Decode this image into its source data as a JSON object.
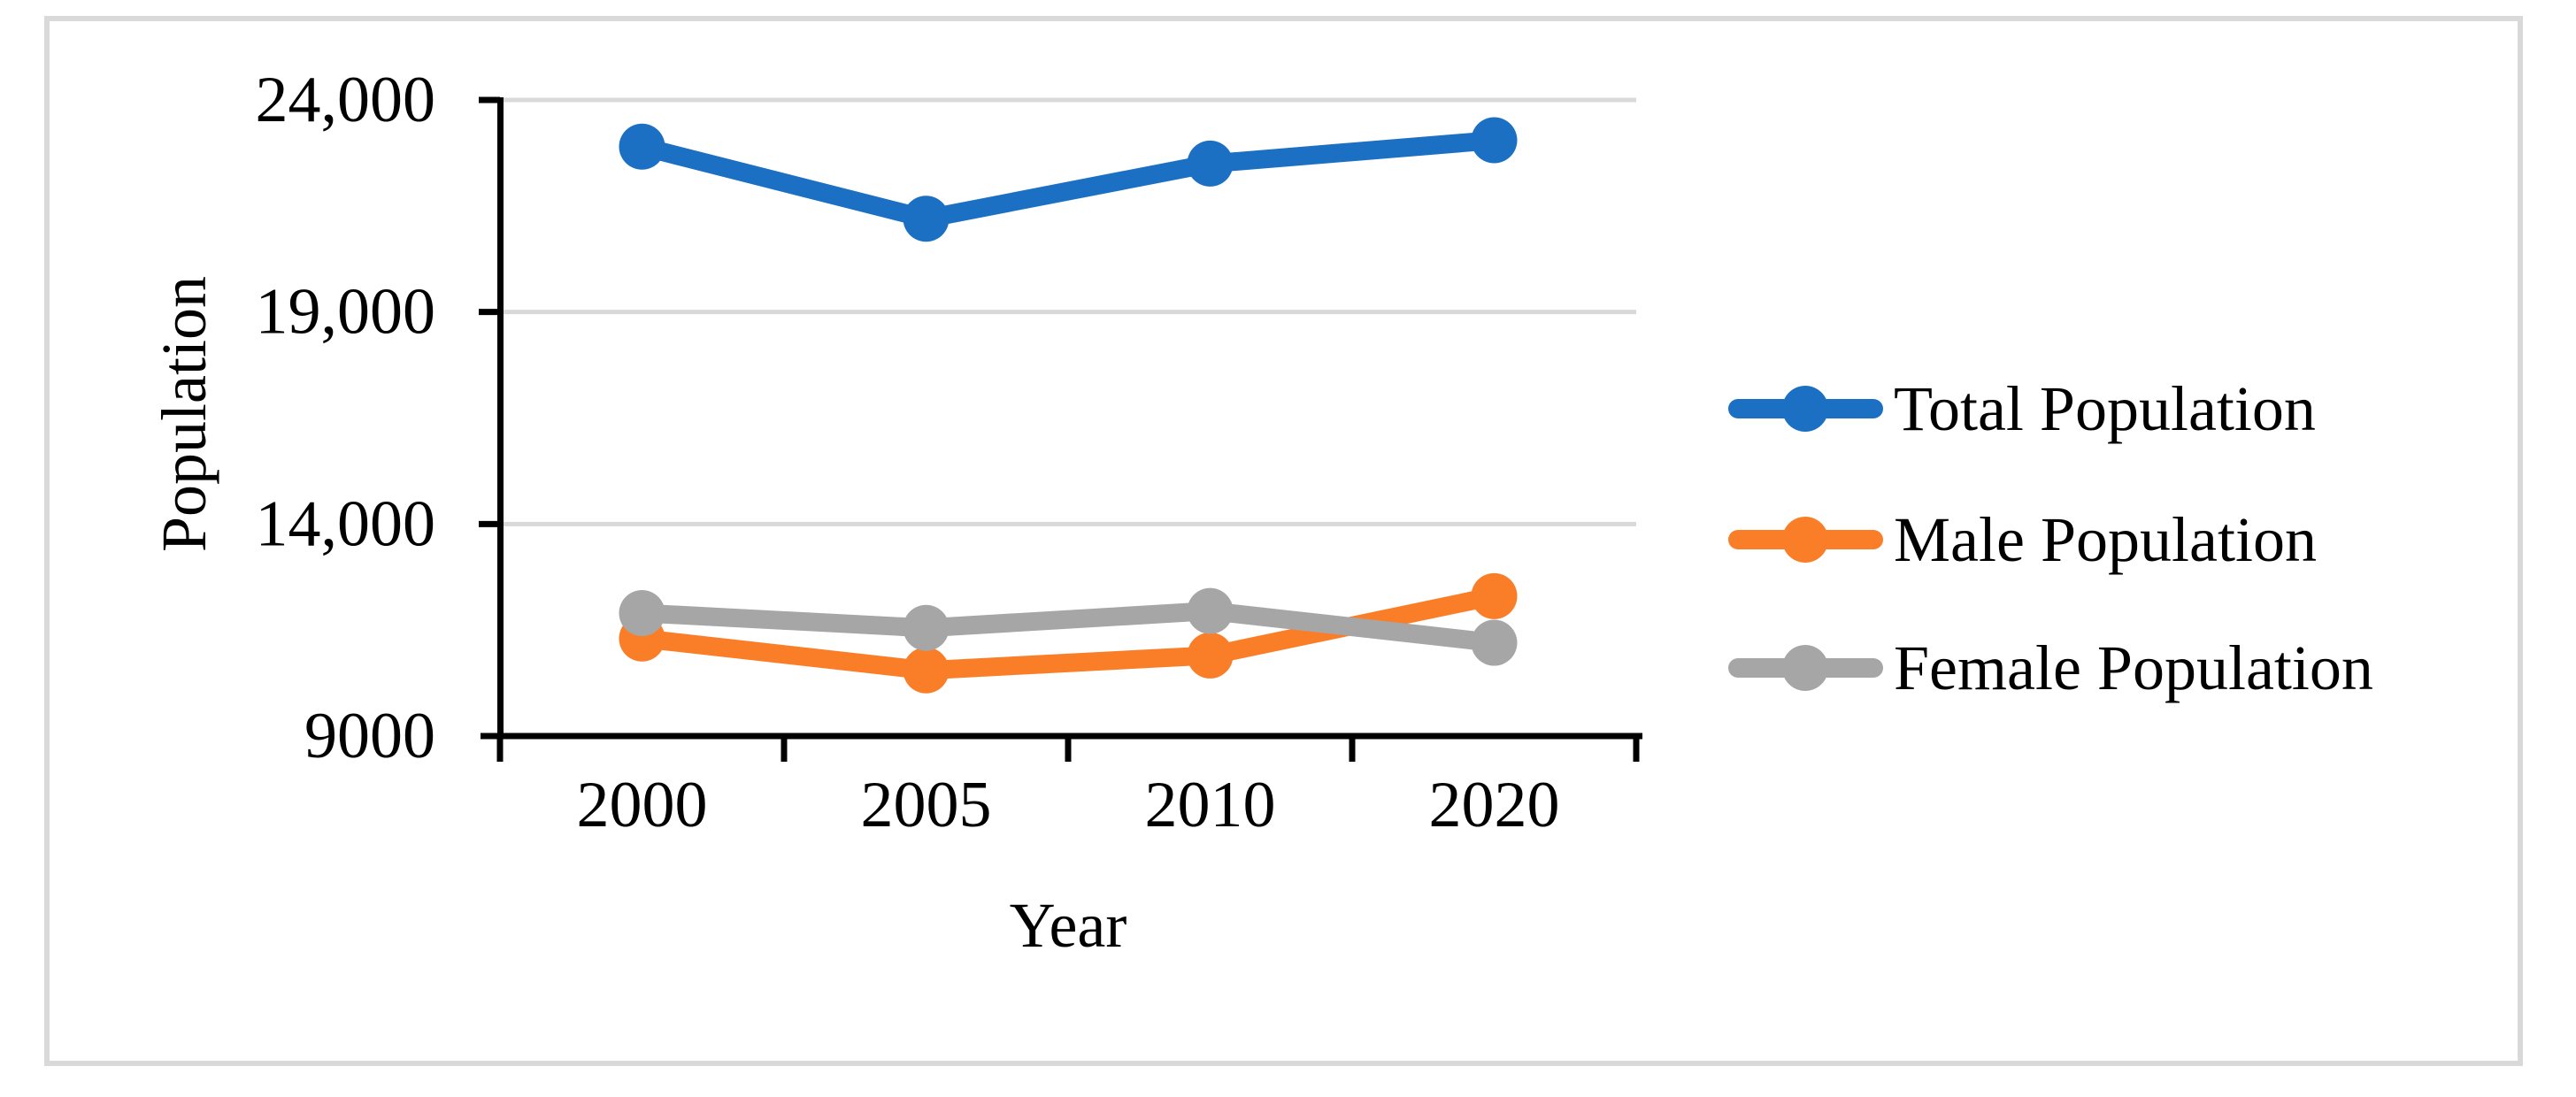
{
  "page": {
    "background": "#FFFFFF"
  },
  "frame": {
    "border_color": "#D9D9D9"
  },
  "chart_data": {
    "type": "line",
    "title": "",
    "categories": [
      "2000",
      "2005",
      "2010",
      "2020"
    ],
    "series": [
      {
        "name": "Total Population",
        "color": "#1B70C3",
        "values": [
          22900,
          21200,
          22500,
          23050
        ]
      },
      {
        "name": "Male Population",
        "color": "#FA7E28",
        "values": [
          11300,
          10550,
          10900,
          12300
        ]
      },
      {
        "name": "Female Population",
        "color": "#A6A6A6",
        "values": [
          11900,
          11550,
          11950,
          11200
        ]
      }
    ],
    "xlabel": "Year",
    "ylabel": "Population",
    "ylim": [
      9000,
      24000
    ],
    "yticks": [
      {
        "value": 9000,
        "label": "9000"
      },
      {
        "value": 14000,
        "label": "14,000"
      },
      {
        "value": 19000,
        "label": "19,000"
      },
      {
        "value": 24000,
        "label": "24,000"
      }
    ],
    "grid": "horizontal-major",
    "legend_position": "right",
    "marker": "circle",
    "axis_color": "#000000",
    "grid_color": "#D9D9D9"
  }
}
